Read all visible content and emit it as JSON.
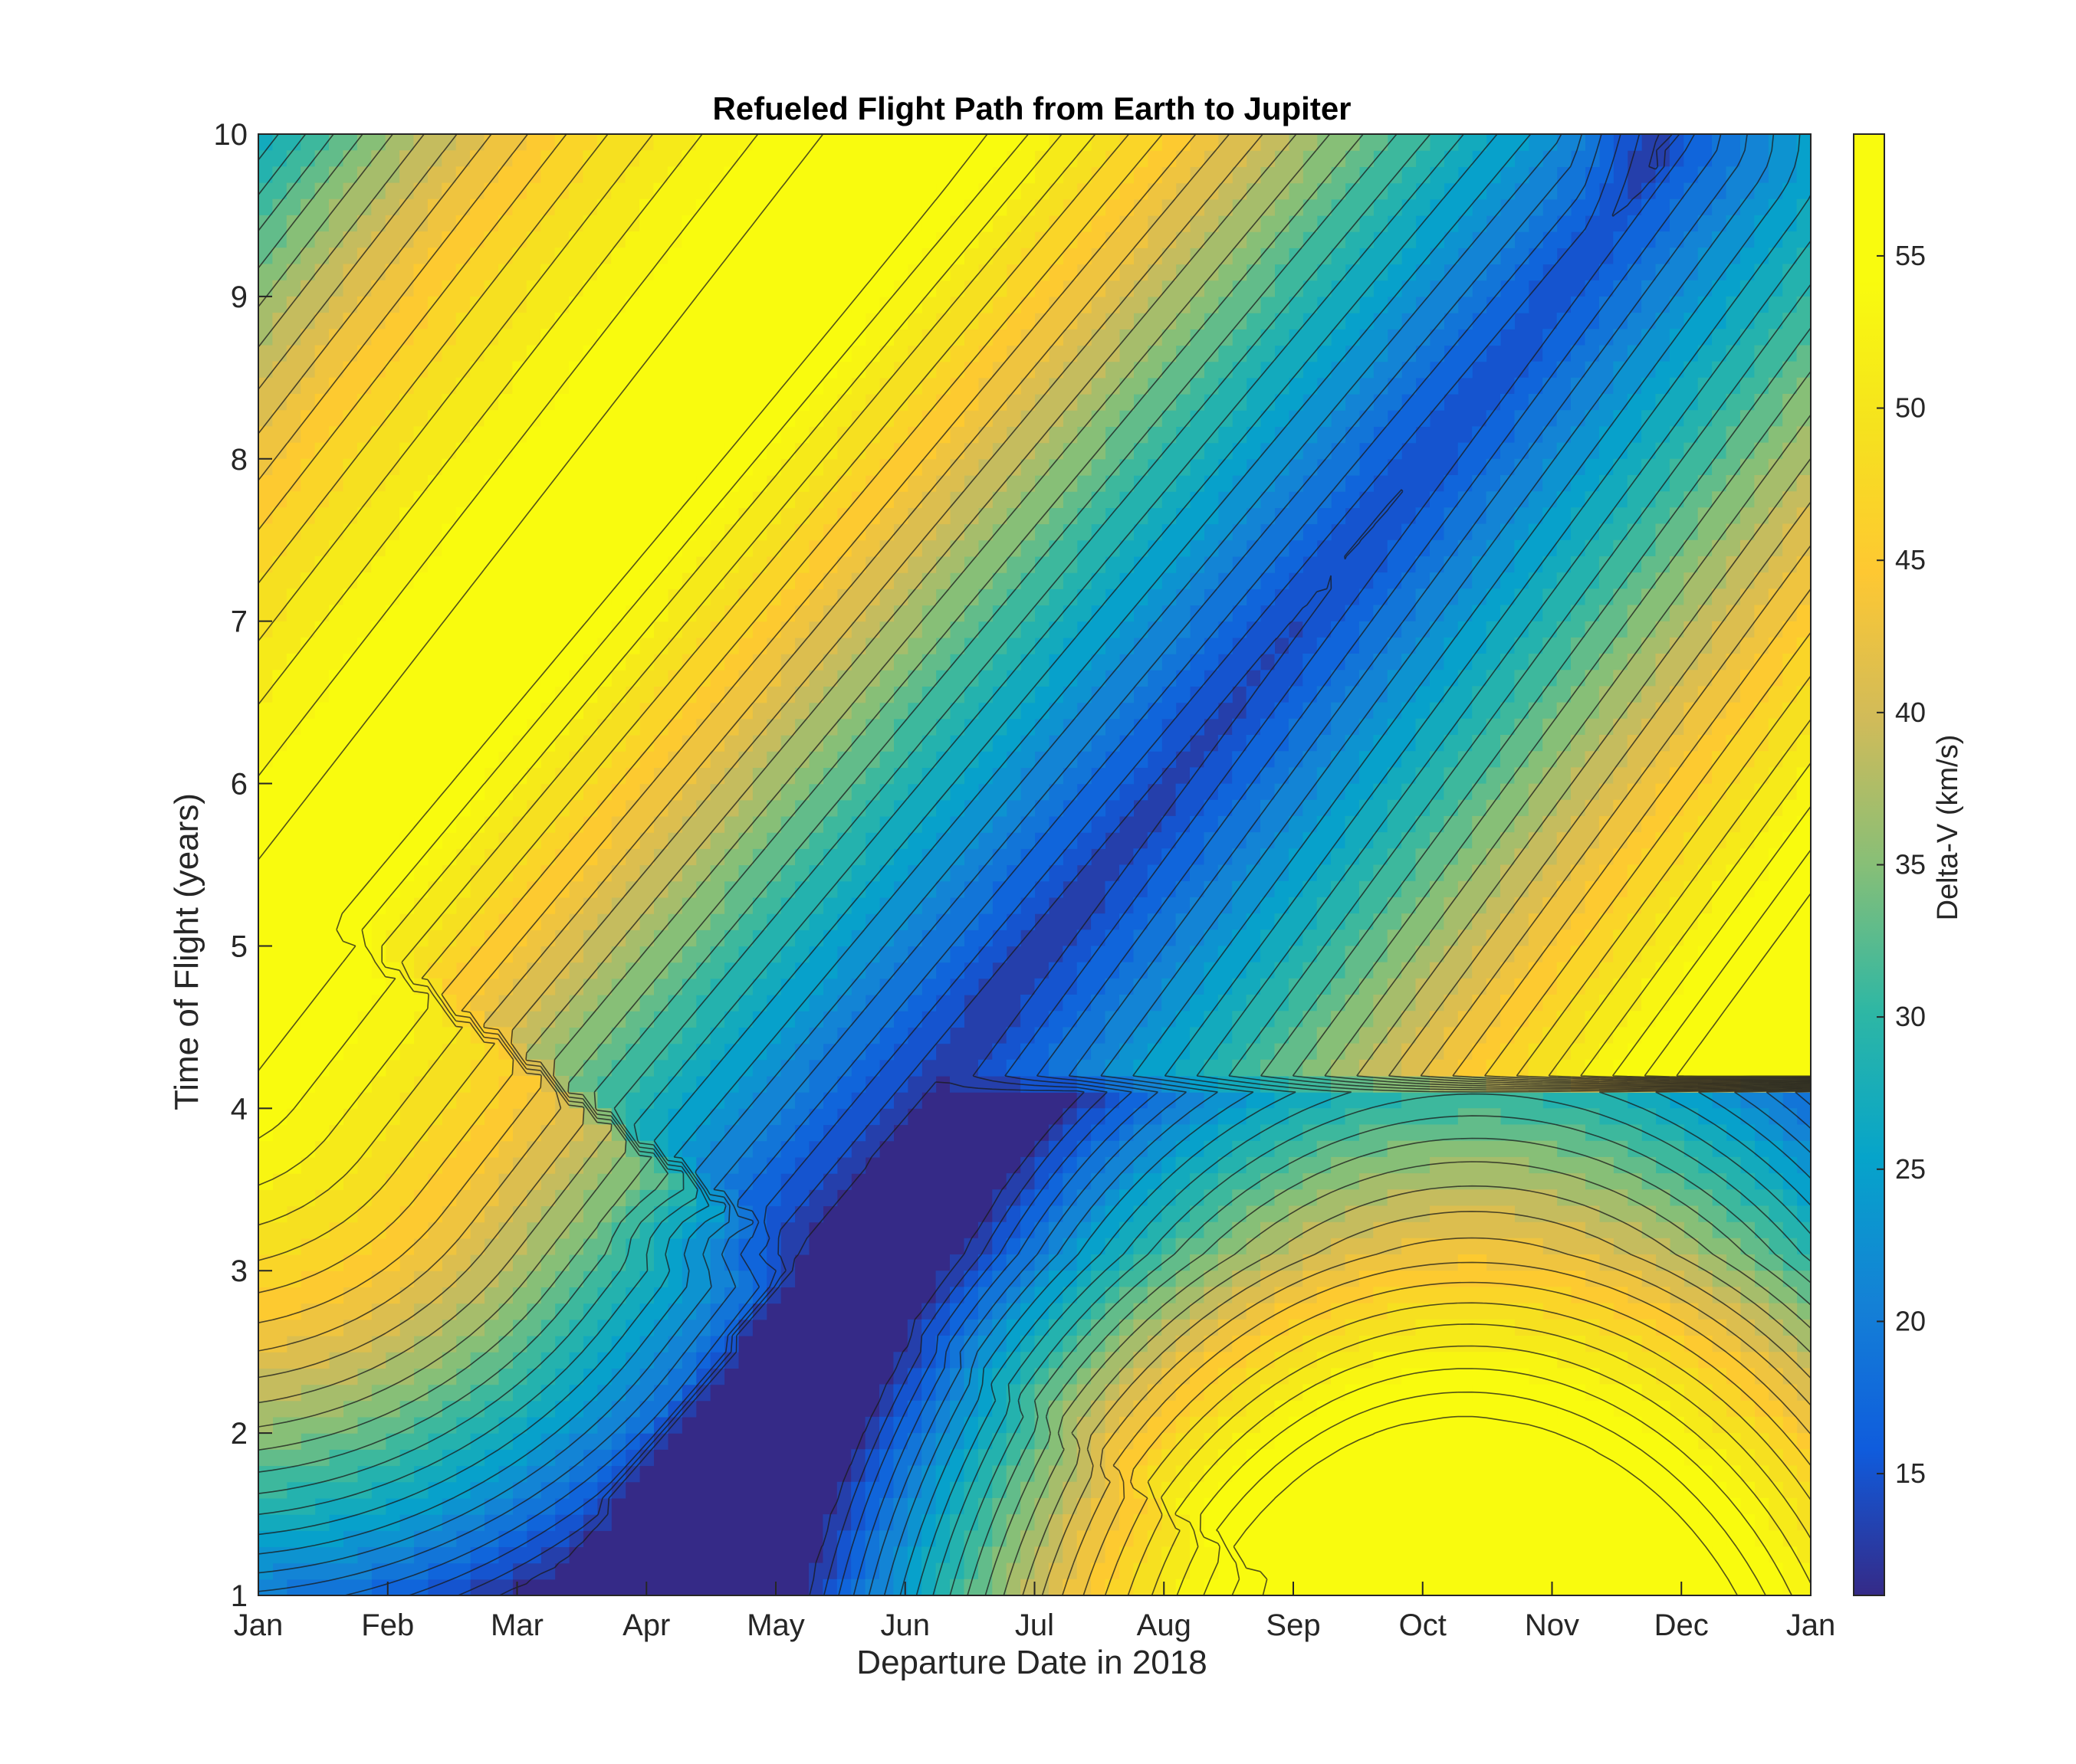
{
  "chart_data": {
    "type": "contour",
    "title": "Refueled Flight Path from Earth to Jupiter",
    "xlabel": "Departure Date in 2018",
    "ylabel": "Time of Flight (years)",
    "colorbar_label": "Delta-V (km/s)",
    "x_tick_labels": [
      "Jan",
      "Feb",
      "Mar",
      "Apr",
      "May",
      "Jun",
      "Jul",
      "Aug",
      "Sep",
      "Oct",
      "Nov",
      "Dec",
      "Jan"
    ],
    "x_range_months": [
      0,
      12
    ],
    "y_range": [
      1,
      10
    ],
    "y_ticks": [
      1,
      2,
      3,
      4,
      5,
      6,
      7,
      8,
      9,
      10
    ],
    "colorbar_range": [
      11,
      59
    ],
    "colorbar_ticks": [
      15,
      20,
      25,
      30,
      35,
      40,
      45,
      50,
      55
    ],
    "contour_step": 2,
    "colormap": "parula",
    "minimum": {
      "x_months": 4.2,
      "y_years": 3.1,
      "value": 11.5
    },
    "ridges": [
      {
        "desc": "yellow ridge",
        "from": {
          "x_months": 0.8,
          "y_years": 5.7
        },
        "to": {
          "x_months": 5.0,
          "y_years": 10.0
        },
        "value": 58
      },
      {
        "desc": "yellow lower-right",
        "at": {
          "x_months": 9.1,
          "y_years": 1.0
        },
        "value": 58
      }
    ],
    "valley": {
      "from": {
        "x_months": 4.2,
        "y_years": 3.1
      },
      "to": {
        "x_months": 11.0,
        "y_years": 10.0
      }
    }
  }
}
